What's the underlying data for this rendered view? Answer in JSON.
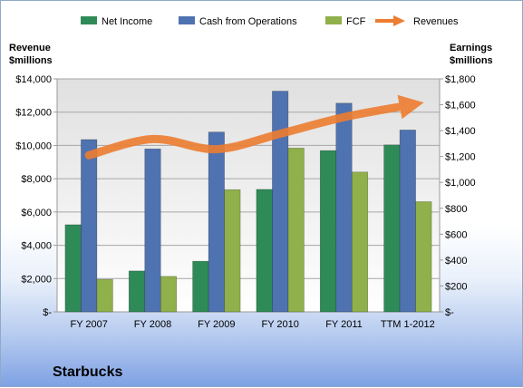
{
  "chart_data": {
    "type": "bar",
    "title": "Starbucks",
    "categories": [
      "FY 2007",
      "FY 2008",
      "FY 2009",
      "FY 2010",
      "FY 2011",
      "TTM 1-2012"
    ],
    "left_axis": {
      "label_line1": "Revenue",
      "label_line2": "$millions",
      "ylim": [
        0,
        14000
      ],
      "ticks": [
        "$-",
        "$2,000",
        "$4,000",
        "$6,000",
        "$8,000",
        "$10,000",
        "$12,000",
        "$14,000"
      ]
    },
    "right_axis": {
      "label_line1": "Earnings",
      "label_line2": "$millions",
      "ylim": [
        0,
        1800
      ],
      "ticks": [
        "$-",
        "$200",
        "$400",
        "$600",
        "$800",
        "$1,000",
        "$1,200",
        "$1,400",
        "$1,600",
        "$1,800"
      ]
    },
    "series": [
      {
        "name": "Net Income",
        "type": "bar",
        "axis": "right",
        "color": "#2e8b57",
        "values": [
          673,
          316,
          391,
          946,
          1246,
          1290
        ]
      },
      {
        "name": "Cash from Operations",
        "type": "bar",
        "axis": "right",
        "color": "#4f72b0",
        "values": [
          1331,
          1259,
          1389,
          1705,
          1612,
          1405
        ]
      },
      {
        "name": "FCF",
        "type": "bar",
        "axis": "right",
        "color": "#8fb04a",
        "values": [
          251,
          274,
          944,
          1265,
          1080,
          851
        ]
      },
      {
        "name": "Revenues",
        "type": "line",
        "axis": "left",
        "color": "#ed7d31",
        "values": [
          9412,
          10383,
          9775,
          10707,
          11700,
          12400
        ]
      }
    ],
    "grid": true,
    "legend": "top"
  }
}
